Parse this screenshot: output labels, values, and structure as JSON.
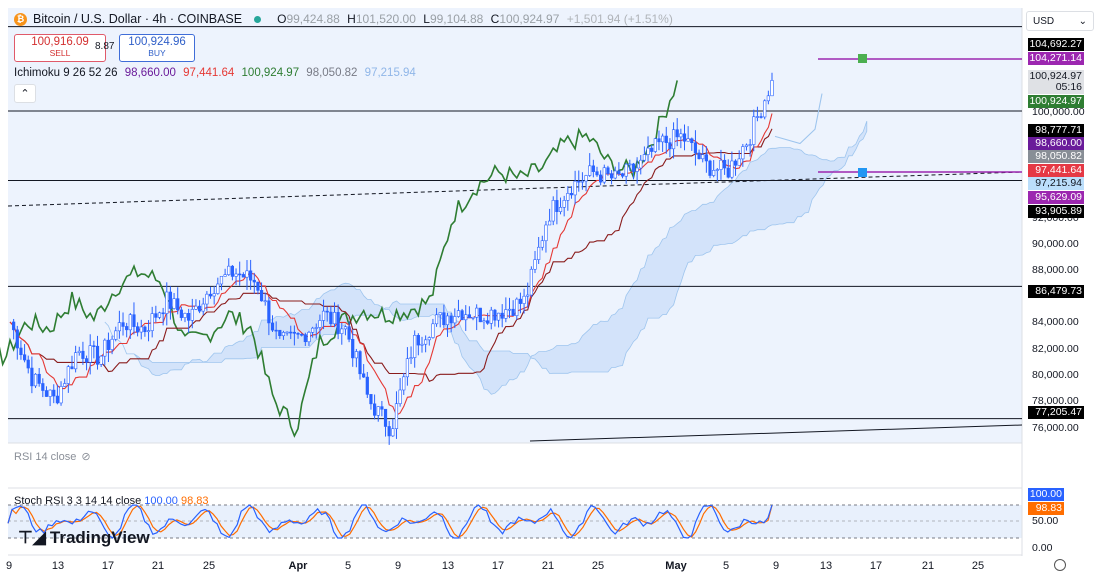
{
  "header": {
    "symbol": "Bitcoin / U.S. Dollar · 4h · COINBASE",
    "btc_glyph": "₿",
    "o_label": "O",
    "o_value": "99,424.88",
    "h_label": "H",
    "h_value": "101,520.00",
    "l_label": "L",
    "l_value": "99,104.88",
    "c_label": "C",
    "c_value": "100,924.97",
    "change": "+1,501.94 (+1.51%)"
  },
  "trade": {
    "sell_price": "100,916.09",
    "sell_label": "SELL",
    "spread": "8.87",
    "buy_price": "100,924.96",
    "buy_label": "BUY"
  },
  "ichimoku": {
    "label": "Ichimoku 9 26 52 26",
    "v1": "98,660.00",
    "v2": "97,441.64",
    "v3": "100,924.97",
    "v4": "98,050.82",
    "v5": "97,215.94"
  },
  "currency": "USD",
  "rsi_label": "RSI 14 close",
  "stoch": {
    "label": "Stoch RSI 3 3 14 14 close",
    "k": "100.00",
    "d": "98.83"
  },
  "brand": "TradingView",
  "colors": {
    "up": "#2962ff",
    "down": "#2962ff",
    "conversion": "#e53935",
    "base": "#8a1c1c",
    "lagging": "#2e7d32",
    "cloud": "#d3e3fa",
    "k_line": "#2962ff",
    "d_line": "#ff6d00",
    "level": "#000000",
    "purple": "#7b1fa2"
  },
  "price_scale": {
    "ticks": [
      "100,000.00",
      "92,000.00",
      "90,000.00",
      "88,000.00",
      "84,000.00",
      "82,000.00",
      "80,000.00",
      "78,000.00",
      "76,000.00"
    ],
    "labels": [
      {
        "text": "104,692.27",
        "bg": "#000000",
        "fg": "#ffffff"
      },
      {
        "text": "104,271.14",
        "bg": "#9c27b0",
        "fg": "#ffffff"
      },
      {
        "text": "100,924.97",
        "bg": "#dfe1e5",
        "fg": "#131722"
      },
      {
        "text": "05:16",
        "bg": "#dfe1e5",
        "fg": "#131722"
      },
      {
        "text": "100,924.97",
        "bg": "#2e7d32",
        "fg": "#ffffff"
      },
      {
        "text": "98,777.71",
        "bg": "#000000",
        "fg": "#ffffff"
      },
      {
        "text": "98,660.00",
        "bg": "#6a1b9a",
        "fg": "#ffffff"
      },
      {
        "text": "98,050.82",
        "bg": "#888e96",
        "fg": "#ffffff"
      },
      {
        "text": "97,441.64",
        "bg": "#e53945",
        "fg": "#ffffff"
      },
      {
        "text": "97,215.94",
        "bg": "#bbdefb",
        "fg": "#131722"
      },
      {
        "text": "95,629.09",
        "bg": "#9c27b0",
        "fg": "#ffffff"
      },
      {
        "text": "93,905.89",
        "bg": "#000000",
        "fg": "#ffffff"
      },
      {
        "text": "86,479.73",
        "bg": "#000000",
        "fg": "#ffffff"
      },
      {
        "text": "77,205.47",
        "bg": "#000000",
        "fg": "#ffffff"
      }
    ],
    "stoch_labels": [
      {
        "text": "100.00",
        "bg": "#2962ff",
        "fg": "#ffffff"
      },
      {
        "text": "98.83",
        "bg": "#ff6d00",
        "fg": "#ffffff"
      }
    ],
    "stoch_ticks": [
      "50.00",
      "0.00"
    ]
  },
  "time_axis": [
    "9",
    "13",
    "17",
    "21",
    "25",
    "Apr",
    "5",
    "9",
    "13",
    "17",
    "21",
    "25",
    "May",
    "5",
    "9",
    "13",
    "17",
    "21",
    "25"
  ],
  "chart_data": {
    "type": "candlestick",
    "title": "Bitcoin / U.S. Dollar · 4h · COINBASE",
    "ylim": [
      75500,
      106000
    ],
    "horizontal_levels": [
      104692.27,
      98777.71,
      93905.89,
      86479.73,
      77205.47
    ],
    "close_path": [
      {
        "x": "Mar 9",
        "y": 84000
      },
      {
        "x": "Mar 10",
        "y": 80000
      },
      {
        "x": "Mar 11",
        "y": 78500
      },
      {
        "x": "Mar 12",
        "y": 82000
      },
      {
        "x": "Mar 13",
        "y": 81500
      },
      {
        "x": "Mar 15",
        "y": 84000
      },
      {
        "x": "Mar 17",
        "y": 83500
      },
      {
        "x": "Mar 19",
        "y": 85500
      },
      {
        "x": "Mar 21",
        "y": 84200
      },
      {
        "x": "Mar 23",
        "y": 86500
      },
      {
        "x": "Mar 25",
        "y": 87500
      },
      {
        "x": "Mar 27",
        "y": 86800
      },
      {
        "x": "Mar 29",
        "y": 82500
      },
      {
        "x": "Mar 31",
        "y": 83000
      },
      {
        "x": "Apr 2",
        "y": 84500
      },
      {
        "x": "Apr 4",
        "y": 83500
      },
      {
        "x": "Apr 6",
        "y": 78500
      },
      {
        "x": "Apr 8",
        "y": 76500
      },
      {
        "x": "Apr 9",
        "y": 82500
      },
      {
        "x": "Apr 11",
        "y": 84000
      },
      {
        "x": "Apr 13",
        "y": 84800
      },
      {
        "x": "Apr 15",
        "y": 84500
      },
      {
        "x": "Apr 17",
        "y": 84800
      },
      {
        "x": "Apr 20",
        "y": 85500
      },
      {
        "x": "Apr 22",
        "y": 91500
      },
      {
        "x": "Apr 23",
        "y": 93500
      },
      {
        "x": "Apr 25",
        "y": 94500
      },
      {
        "x": "Apr 27",
        "y": 94000
      },
      {
        "x": "Apr 29",
        "y": 94800
      },
      {
        "x": "May 1",
        "y": 96500
      },
      {
        "x": "May 2",
        "y": 97000
      },
      {
        "x": "May 4",
        "y": 95000
      },
      {
        "x": "May 6",
        "y": 94500
      },
      {
        "x": "May 7",
        "y": 97000
      },
      {
        "x": "May 8",
        "y": 100924.97
      }
    ]
  }
}
